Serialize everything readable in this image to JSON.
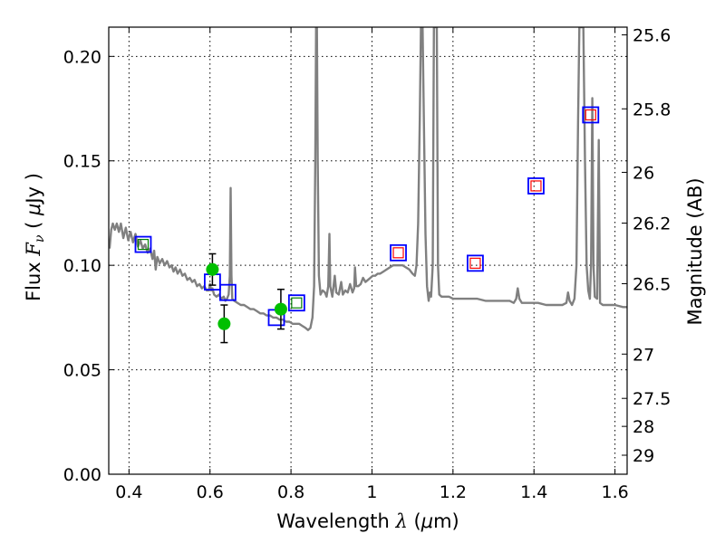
{
  "chart_data": {
    "type": "scatter",
    "title": "",
    "xlabel": {
      "prefix": "Wavelength ",
      "sym": "λ",
      "unit_open": " (",
      "mu": "μ",
      "unit_rest": "m)"
    },
    "ylabel": {
      "prefix": "Flux ",
      "sym": "F",
      "sub": "ν",
      "unit_open": " ( ",
      "mu": "μ",
      "unit_rest": "Jy )"
    },
    "ylabel_right": "Magnitude (AB)",
    "xlim": [
      0.35,
      1.63
    ],
    "ylim": [
      0.0,
      0.214
    ],
    "x_ticks": [
      {
        "v": 0.4,
        "label": "0.4"
      },
      {
        "v": 0.6,
        "label": "0.6"
      },
      {
        "v": 0.8,
        "label": "0.8"
      },
      {
        "v": 1.0,
        "label": "1"
      },
      {
        "v": 1.2,
        "label": "1.2"
      },
      {
        "v": 1.4,
        "label": "1.4"
      },
      {
        "v": 1.6,
        "label": "1.6"
      }
    ],
    "y_ticks": [
      {
        "v": 0.0,
        "label": "0.00"
      },
      {
        "v": 0.05,
        "label": "0.05"
      },
      {
        "v": 0.1,
        "label": "0.10"
      },
      {
        "v": 0.15,
        "label": "0.15"
      },
      {
        "v": 0.2,
        "label": "0.20"
      }
    ],
    "mag_ticks": [
      {
        "label": "25.6",
        "flux": 0.2103
      },
      {
        "label": "25.8",
        "flux": 0.1749
      },
      {
        "label": "26",
        "flux": 0.1445
      },
      {
        "label": "26.2",
        "flux": 0.1202
      },
      {
        "label": "26.5",
        "flux": 0.0912
      },
      {
        "label": "27",
        "flux": 0.0575
      },
      {
        "label": "27.5",
        "flux": 0.0363
      },
      {
        "label": "28",
        "flux": 0.0229
      },
      {
        "label": "29",
        "flux": 0.0091
      }
    ],
    "grid": true,
    "sed_model": {
      "color": "#808080",
      "points": [
        [
          0.352,
          0.108
        ],
        [
          0.356,
          0.117
        ],
        [
          0.36,
          0.12
        ],
        [
          0.365,
          0.117
        ],
        [
          0.37,
          0.12
        ],
        [
          0.375,
          0.116
        ],
        [
          0.38,
          0.12
        ],
        [
          0.386,
          0.113
        ],
        [
          0.392,
          0.118
        ],
        [
          0.398,
          0.112
        ],
        [
          0.404,
          0.116
        ],
        [
          0.41,
          0.111
        ],
        [
          0.416,
          0.115
        ],
        [
          0.422,
          0.109
        ],
        [
          0.428,
          0.112
        ],
        [
          0.434,
          0.108
        ],
        [
          0.44,
          0.11
        ],
        [
          0.446,
          0.106
        ],
        [
          0.452,
          0.108
        ],
        [
          0.458,
          0.103
        ],
        [
          0.462,
          0.107
        ],
        [
          0.466,
          0.098
        ],
        [
          0.47,
          0.104
        ],
        [
          0.476,
          0.101
        ],
        [
          0.482,
          0.103
        ],
        [
          0.488,
          0.1
        ],
        [
          0.494,
          0.102
        ],
        [
          0.5,
          0.099
        ],
        [
          0.505,
          0.1
        ],
        [
          0.51,
          0.097
        ],
        [
          0.515,
          0.099
        ],
        [
          0.52,
          0.096
        ],
        [
          0.526,
          0.098
        ],
        [
          0.532,
          0.095
        ],
        [
          0.538,
          0.096
        ],
        [
          0.544,
          0.093
        ],
        [
          0.55,
          0.094
        ],
        [
          0.556,
          0.092
        ],
        [
          0.562,
          0.093
        ],
        [
          0.568,
          0.09
        ],
        [
          0.574,
          0.091
        ],
        [
          0.58,
          0.089
        ],
        [
          0.586,
          0.09
        ],
        [
          0.592,
          0.088
        ],
        [
          0.597,
          0.088
        ],
        [
          0.6,
          0.091
        ],
        [
          0.603,
          0.088
        ],
        [
          0.606,
          0.089
        ],
        [
          0.61,
          0.086
        ],
        [
          0.616,
          0.085
        ],
        [
          0.622,
          0.086
        ],
        [
          0.628,
          0.084
        ],
        [
          0.634,
          0.085
        ],
        [
          0.638,
          0.083
        ],
        [
          0.642,
          0.084
        ],
        [
          0.646,
          0.086
        ],
        [
          0.649,
          0.095
        ],
        [
          0.651,
          0.137
        ],
        [
          0.653,
          0.095
        ],
        [
          0.655,
          0.084
        ],
        [
          0.66,
          0.083
        ],
        [
          0.668,
          0.082
        ],
        [
          0.676,
          0.081
        ],
        [
          0.684,
          0.081
        ],
        [
          0.692,
          0.08
        ],
        [
          0.7,
          0.079
        ],
        [
          0.708,
          0.079
        ],
        [
          0.716,
          0.078
        ],
        [
          0.724,
          0.077
        ],
        [
          0.732,
          0.077
        ],
        [
          0.74,
          0.076
        ],
        [
          0.748,
          0.076
        ],
        [
          0.756,
          0.075
        ],
        [
          0.764,
          0.075
        ],
        [
          0.772,
          0.074
        ],
        [
          0.78,
          0.074
        ],
        [
          0.788,
          0.073
        ],
        [
          0.796,
          0.073
        ],
        [
          0.804,
          0.072
        ],
        [
          0.812,
          0.072
        ],
        [
          0.82,
          0.072
        ],
        [
          0.828,
          0.071
        ],
        [
          0.836,
          0.07
        ],
        [
          0.842,
          0.069
        ],
        [
          0.848,
          0.07
        ],
        [
          0.853,
          0.075
        ],
        [
          0.857,
          0.09
        ],
        [
          0.86,
          0.15
        ],
        [
          0.862,
          0.214
        ],
        [
          0.864,
          0.214
        ],
        [
          0.866,
          0.15
        ],
        [
          0.869,
          0.095
        ],
        [
          0.873,
          0.086
        ],
        [
          0.878,
          0.088
        ],
        [
          0.884,
          0.087
        ],
        [
          0.888,
          0.085
        ],
        [
          0.892,
          0.09
        ],
        [
          0.895,
          0.115
        ],
        [
          0.897,
          0.09
        ],
        [
          0.902,
          0.085
        ],
        [
          0.908,
          0.095
        ],
        [
          0.912,
          0.087
        ],
        [
          0.918,
          0.086
        ],
        [
          0.924,
          0.092
        ],
        [
          0.928,
          0.086
        ],
        [
          0.934,
          0.088
        ],
        [
          0.94,
          0.087
        ],
        [
          0.946,
          0.091
        ],
        [
          0.952,
          0.087
        ],
        [
          0.956,
          0.089
        ],
        [
          0.958,
          0.099
        ],
        [
          0.961,
          0.09
        ],
        [
          0.966,
          0.09
        ],
        [
          0.972,
          0.091
        ],
        [
          0.978,
          0.094
        ],
        [
          0.984,
          0.092
        ],
        [
          0.99,
          0.093
        ],
        [
          0.996,
          0.094
        ],
        [
          1.002,
          0.095
        ],
        [
          1.008,
          0.095
        ],
        [
          1.014,
          0.096
        ],
        [
          1.02,
          0.096
        ],
        [
          1.028,
          0.097
        ],
        [
          1.036,
          0.098
        ],
        [
          1.044,
          0.099
        ],
        [
          1.052,
          0.1
        ],
        [
          1.06,
          0.1
        ],
        [
          1.068,
          0.1
        ],
        [
          1.076,
          0.1
        ],
        [
          1.084,
          0.099
        ],
        [
          1.092,
          0.098
        ],
        [
          1.1,
          0.096
        ],
        [
          1.106,
          0.095
        ],
        [
          1.11,
          0.1
        ],
        [
          1.114,
          0.12
        ],
        [
          1.118,
          0.17
        ],
        [
          1.121,
          0.214
        ],
        [
          1.125,
          0.214
        ],
        [
          1.128,
          0.17
        ],
        [
          1.132,
          0.115
        ],
        [
          1.136,
          0.09
        ],
        [
          1.14,
          0.083
        ],
        [
          1.143,
          0.087
        ],
        [
          1.146,
          0.085
        ],
        [
          1.15,
          0.1
        ],
        [
          1.153,
          0.214
        ],
        [
          1.16,
          0.214
        ],
        [
          1.163,
          0.1
        ],
        [
          1.166,
          0.086
        ],
        [
          1.172,
          0.085
        ],
        [
          1.18,
          0.085
        ],
        [
          1.19,
          0.085
        ],
        [
          1.2,
          0.084
        ],
        [
          1.22,
          0.084
        ],
        [
          1.24,
          0.084
        ],
        [
          1.26,
          0.084
        ],
        [
          1.28,
          0.083
        ],
        [
          1.3,
          0.083
        ],
        [
          1.32,
          0.083
        ],
        [
          1.34,
          0.083
        ],
        [
          1.35,
          0.082
        ],
        [
          1.356,
          0.084
        ],
        [
          1.36,
          0.089
        ],
        [
          1.364,
          0.084
        ],
        [
          1.37,
          0.082
        ],
        [
          1.39,
          0.082
        ],
        [
          1.41,
          0.082
        ],
        [
          1.43,
          0.081
        ],
        [
          1.45,
          0.081
        ],
        [
          1.47,
          0.081
        ],
        [
          1.48,
          0.082
        ],
        [
          1.484,
          0.087
        ],
        [
          1.488,
          0.083
        ],
        [
          1.494,
          0.081
        ],
        [
          1.5,
          0.084
        ],
        [
          1.505,
          0.1
        ],
        [
          1.509,
          0.17
        ],
        [
          1.512,
          0.214
        ],
        [
          1.522,
          0.214
        ],
        [
          1.526,
          0.15
        ],
        [
          1.53,
          0.1
        ],
        [
          1.534,
          0.088
        ],
        [
          1.538,
          0.084
        ],
        [
          1.541,
          0.1
        ],
        [
          1.544,
          0.18
        ],
        [
          1.547,
          0.1
        ],
        [
          1.55,
          0.085
        ],
        [
          1.556,
          0.084
        ],
        [
          1.56,
          0.16
        ],
        [
          1.563,
          0.082
        ],
        [
          1.57,
          0.081
        ],
        [
          1.58,
          0.081
        ],
        [
          1.6,
          0.081
        ],
        [
          1.62,
          0.08
        ],
        [
          1.63,
          0.08
        ]
      ]
    },
    "model_photometry_blue": [
      [
        0.435,
        0.11
      ],
      [
        0.606,
        0.092
      ],
      [
        0.644,
        0.087
      ],
      [
        0.764,
        0.075
      ],
      [
        0.814,
        0.082
      ],
      [
        1.065,
        0.106
      ],
      [
        1.255,
        0.101
      ],
      [
        1.405,
        0.138
      ],
      [
        1.54,
        0.172
      ]
    ],
    "observed_green_squares": [
      [
        0.435,
        0.11
      ],
      [
        0.814,
        0.082
      ]
    ],
    "observed_red_squares": [
      [
        1.065,
        0.106
      ],
      [
        1.255,
        0.101
      ],
      [
        1.405,
        0.138
      ],
      [
        1.54,
        0.172
      ]
    ],
    "observed_green_points": [
      {
        "x": 0.606,
        "y": 0.098,
        "err": 0.0075
      },
      {
        "x": 0.635,
        "y": 0.072,
        "err": 0.009
      },
      {
        "x": 0.775,
        "y": 0.079,
        "err": 0.0095
      }
    ],
    "colors": {
      "model_line": "#808080",
      "blue_square": "#0000ff",
      "green_square": "#008000",
      "red_square": "#ff0000",
      "green_point": "#00bf00",
      "errorbar": "#000000"
    }
  }
}
